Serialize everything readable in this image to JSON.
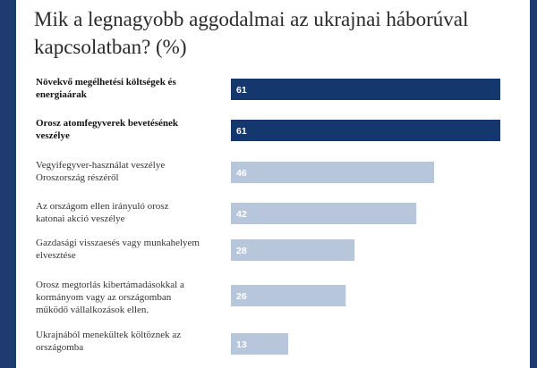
{
  "title": "Mik a legnagyobb aggodalmai az ukrajnai háborúval kapcsolatban? (%)",
  "colors": {
    "frame": "#1f3a6e",
    "highlight": "#14376e",
    "regular": "#b8c6dc"
  },
  "chart_data": {
    "type": "bar",
    "orientation": "horizontal",
    "title": "Mik a legnagyobb aggodalmai az ukrajnai háborúval kapcsolatban? (%)",
    "xlim": [
      0,
      65
    ],
    "categories": [
      [
        "Növekvő megélhetési költségek és",
        "energiaárak"
      ],
      [
        "Orosz atomfegyverek bevetésének",
        "veszélye"
      ],
      [
        "Vegyifegyver-használat veszélye",
        "Oroszország részéről"
      ],
      [
        "Az országom ellen irányuló orosz",
        "katonai akció veszélye"
      ],
      [
        "Gazdasági visszaesés vagy munkahelyem",
        "elvesztése"
      ],
      [
        "Orosz megtorlás kibertámadásokkal a",
        "kormányom vagy az országomban",
        "működő vállalkozások ellen."
      ],
      [
        "Ukrajnából menekültek költöznek az",
        "országomba"
      ]
    ],
    "values": [
      61,
      61,
      46,
      42,
      28,
      26,
      13
    ],
    "highlighted": [
      true,
      true,
      false,
      false,
      false,
      false,
      false
    ],
    "grid": false,
    "legend": false
  }
}
